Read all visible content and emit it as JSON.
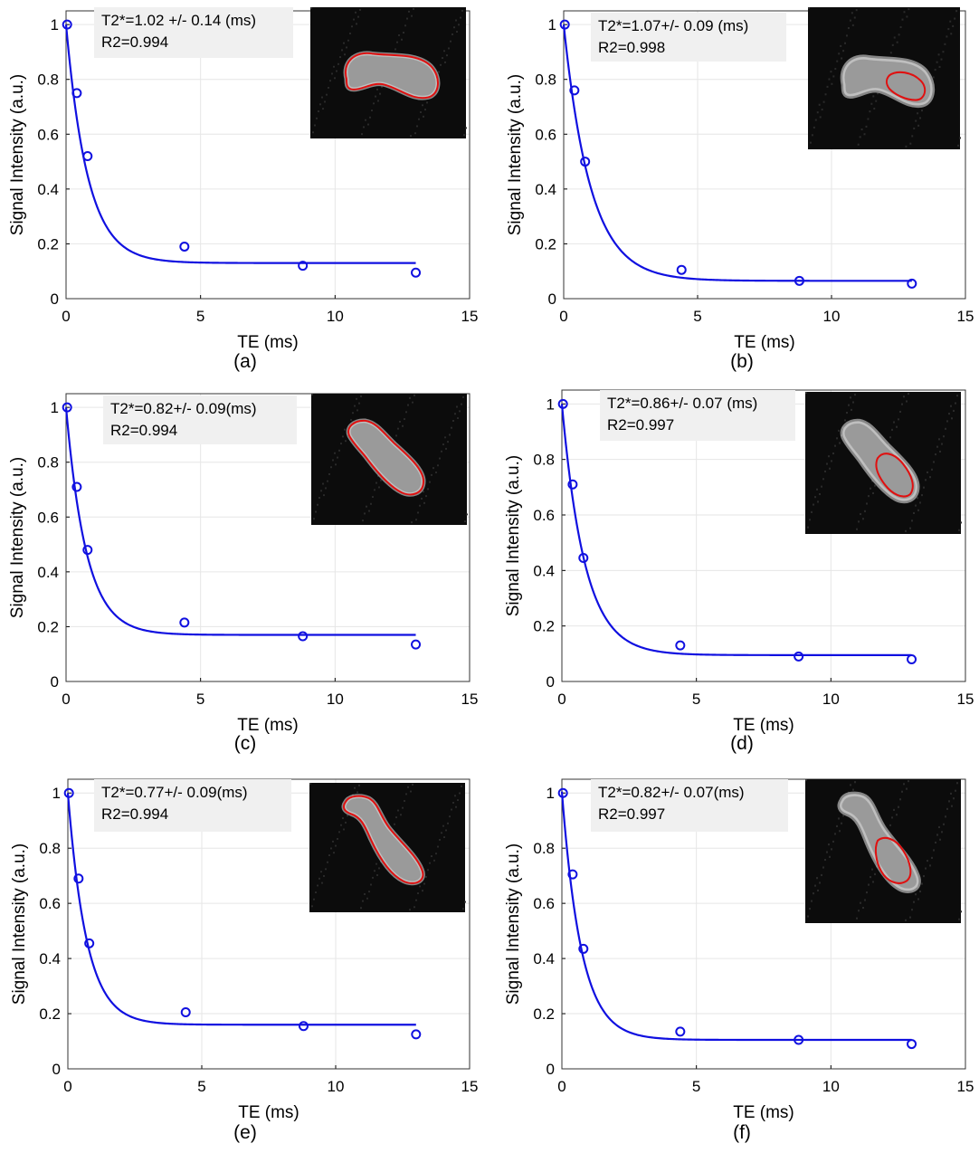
{
  "figure": {
    "panels_note": "",
    "colors": {
      "curve": "#1010e0",
      "marker": "#1010e0",
      "roi": "#e01010",
      "grid": "#e6e6e6",
      "axis": "#000000",
      "annotation_bg": "#f0f0f0",
      "inset_bg": "#0c0c0c"
    }
  },
  "chart_data": [
    {
      "type": "scatter",
      "panel_label": "(a)",
      "xlabel": "TE (ms)",
      "ylabel": "Signal Intensity (a.u.)",
      "xlim": [
        0,
        15
      ],
      "ylim": [
        0,
        1.05
      ],
      "xticks": [
        "0",
        "5",
        "10",
        "15"
      ],
      "yticks": [
        "0",
        "0.2",
        "0.4",
        "0.6",
        "0.8",
        "1"
      ],
      "grid": true,
      "annotation": [
        "T2*=1.02 +/- 0.14 (ms)",
        "R2=0.994"
      ],
      "points": {
        "x": [
          0.04,
          0.4,
          0.8,
          4.4,
          8.8,
          13.0
        ],
        "y": [
          1.0,
          0.75,
          0.52,
          0.19,
          0.12,
          0.095
        ]
      },
      "fit": {
        "model": "exponential decay",
        "s0": 0.87,
        "t2star": 0.8,
        "c": 0.13,
        "x_end": 13.0
      },
      "inset": {
        "roi": "whole",
        "orientation": "a"
      }
    },
    {
      "type": "scatter",
      "panel_label": "(b)",
      "xlabel": "TE (ms)",
      "ylabel": "Signal Intensity (a.u.)",
      "xlim": [
        0,
        15
      ],
      "ylim": [
        0,
        1.05
      ],
      "xticks": [
        "0",
        "5",
        "10",
        "15"
      ],
      "yticks": [
        "0",
        "0.2",
        "0.4",
        "0.6",
        "0.8",
        "1"
      ],
      "grid": true,
      "annotation": [
        "T2*=1.07+/- 0.09 (ms)",
        "R2=0.998"
      ],
      "points": {
        "x": [
          0.04,
          0.4,
          0.8,
          4.4,
          8.8,
          13.0
        ],
        "y": [
          1.0,
          0.76,
          0.5,
          0.105,
          0.065,
          0.055
        ]
      },
      "fit": {
        "model": "exponential decay",
        "s0": 0.935,
        "t2star": 1.0,
        "c": 0.065,
        "x_end": 13.0
      },
      "inset": {
        "roi": "partial",
        "orientation": "a"
      }
    },
    {
      "type": "scatter",
      "panel_label": "(c)",
      "xlabel": "TE (ms)",
      "ylabel": "Signal Intensity (a.u.)",
      "xlim": [
        0,
        15
      ],
      "ylim": [
        0,
        1.05
      ],
      "xticks": [
        "0",
        "5",
        "10",
        "15"
      ],
      "yticks": [
        "0",
        "0.2",
        "0.4",
        "0.6",
        "0.8",
        "1"
      ],
      "grid": true,
      "annotation": [
        "T2*=0.82+/- 0.09(ms)",
        "R2=0.994"
      ],
      "points": {
        "x": [
          0.04,
          0.4,
          0.8,
          4.4,
          8.8,
          13.0
        ],
        "y": [
          1.0,
          0.71,
          0.48,
          0.215,
          0.165,
          0.135
        ]
      },
      "fit": {
        "model": "exponential decay",
        "s0": 0.83,
        "t2star": 0.75,
        "c": 0.17,
        "x_end": 13.0
      },
      "inset": {
        "roi": "whole",
        "orientation": "c"
      }
    },
    {
      "type": "scatter",
      "panel_label": "(d)",
      "xlabel": "TE (ms)",
      "ylabel": "Signal Intensity (a.u.)",
      "xlim": [
        0,
        15
      ],
      "ylim": [
        0,
        1.05
      ],
      "xticks": [
        "0",
        "5",
        "10",
        "15"
      ],
      "yticks": [
        "0",
        "0.2",
        "0.4",
        "0.6",
        "0.8",
        "1"
      ],
      "grid": true,
      "annotation": [
        "T2*=0.86+/- 0.07 (ms)",
        "R2=0.997"
      ],
      "points": {
        "x": [
          0.04,
          0.4,
          0.8,
          4.4,
          8.8,
          13.0
        ],
        "y": [
          1.0,
          0.71,
          0.445,
          0.13,
          0.09,
          0.08
        ]
      },
      "fit": {
        "model": "exponential decay",
        "s0": 0.905,
        "t2star": 0.85,
        "c": 0.095,
        "x_end": 13.0
      },
      "inset": {
        "roi": "partial",
        "orientation": "c"
      }
    },
    {
      "type": "scatter",
      "panel_label": "(e)",
      "xlabel": "TE (ms)",
      "ylabel": "Signal Intensity (a.u.)",
      "xlim": [
        0,
        15
      ],
      "ylim": [
        0,
        1.05
      ],
      "xticks": [
        "0",
        "5",
        "10",
        "15"
      ],
      "yticks": [
        "0",
        "0.2",
        "0.4",
        "0.6",
        "0.8",
        "1"
      ],
      "grid": true,
      "annotation": [
        "T2*=0.77+/- 0.09(ms)",
        "R2=0.994"
      ],
      "points": {
        "x": [
          0.04,
          0.4,
          0.8,
          4.4,
          8.8,
          13.0
        ],
        "y": [
          1.0,
          0.69,
          0.455,
          0.205,
          0.155,
          0.125
        ]
      },
      "fit": {
        "model": "exponential decay",
        "s0": 0.84,
        "t2star": 0.7,
        "c": 0.16,
        "x_end": 13.0
      },
      "inset": {
        "roi": "whole",
        "orientation": "e"
      }
    },
    {
      "type": "scatter",
      "panel_label": "(f)",
      "xlabel": "TE (ms)",
      "ylabel": "Signal Intensity (a.u.)",
      "xlim": [
        0,
        15
      ],
      "ylim": [
        0,
        1.05
      ],
      "xticks": [
        "0",
        "5",
        "10",
        "15"
      ],
      "yticks": [
        "0",
        "0.2",
        "0.4",
        "0.6",
        "0.8",
        "1"
      ],
      "grid": true,
      "annotation": [
        "T2*=0.82+/- 0.07(ms)",
        "R2=0.997"
      ],
      "points": {
        "x": [
          0.04,
          0.4,
          0.8,
          4.4,
          8.8,
          13.0
        ],
        "y": [
          1.0,
          0.705,
          0.435,
          0.135,
          0.105,
          0.09
        ]
      },
      "fit": {
        "model": "exponential decay",
        "s0": 0.9,
        "t2star": 0.72,
        "c": 0.105,
        "x_end": 13.0
      },
      "inset": {
        "roi": "partial",
        "orientation": "e"
      }
    }
  ]
}
